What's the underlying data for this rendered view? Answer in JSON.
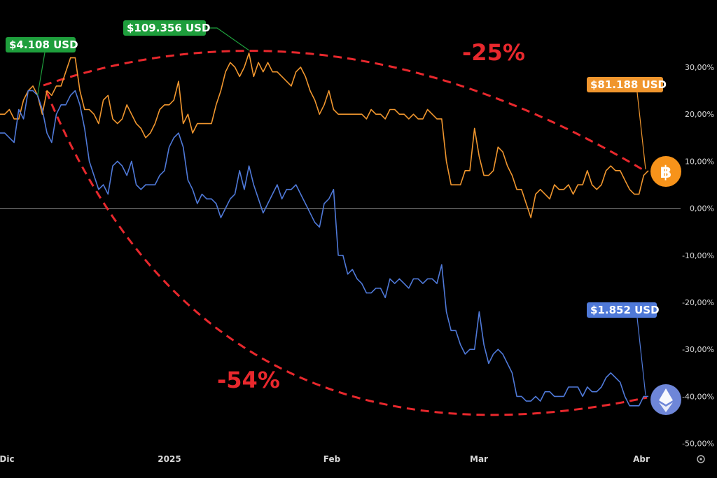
{
  "chart_data": {
    "type": "line",
    "title": "",
    "xlabel": "",
    "ylabel": "",
    "ylim": [
      -50,
      30
    ],
    "y_ticks": [
      "30,00%",
      "20,00%",
      "10,00%",
      "0,00%",
      "-10,00%",
      "-20,00%",
      "-30,00%",
      "-40,00%",
      "-50,00%"
    ],
    "x_ticks": [
      "Dic",
      "2025",
      "Feb",
      "Mar",
      "Abr"
    ],
    "grid": false,
    "legend": "none",
    "colors": {
      "btc": "#f0962e",
      "eth": "#4f79d8",
      "peak": "#1e9e3c",
      "trend": "#e8282d"
    },
    "series": [
      {
        "symbol": "bitcoin-icon",
        "values": [
          20,
          20,
          21,
          19,
          19,
          23,
          25,
          26,
          24,
          20,
          25,
          24,
          26,
          26,
          29,
          32,
          32,
          25,
          21,
          21,
          20,
          18,
          23,
          24,
          19,
          18,
          19,
          22,
          20,
          18,
          17,
          15,
          16,
          18,
          21,
          22,
          22,
          23,
          27,
          18,
          20,
          16,
          18,
          18,
          18,
          18,
          22,
          25,
          29,
          31,
          30,
          28,
          30,
          33,
          28,
          31,
          29,
          31,
          29,
          29,
          28,
          27,
          26,
          29,
          30,
          28,
          25,
          23,
          20,
          22,
          25,
          21,
          20,
          20,
          20,
          20,
          20,
          20,
          19,
          21,
          20,
          20,
          19,
          21,
          21,
          20,
          20,
          19,
          20,
          19,
          19,
          21,
          20,
          19,
          19,
          10,
          5,
          5,
          5,
          8,
          8,
          17,
          11,
          7,
          7,
          8,
          13,
          12,
          9,
          7,
          4,
          4,
          1,
          -2,
          3,
          4,
          3,
          2,
          5,
          4,
          4,
          5,
          3,
          5,
          5,
          8,
          5,
          4,
          5,
          8,
          9,
          8,
          8,
          6,
          4,
          3,
          3,
          7,
          8
        ],
        "end_label": "$81.188 USD"
      },
      {
        "symbol": "ethereum-icon",
        "values": [
          16,
          16,
          15,
          14,
          21,
          19,
          25,
          25,
          24,
          21,
          16,
          14,
          20,
          22,
          22,
          24,
          25,
          22,
          17,
          10,
          7,
          4,
          5,
          3,
          9,
          10,
          9,
          7,
          10,
          5,
          4,
          5,
          5,
          5,
          7,
          8,
          13,
          15,
          16,
          13,
          6,
          4,
          1,
          3,
          2,
          2,
          1,
          -2,
          0,
          2,
          3,
          8,
          4,
          9,
          5,
          2,
          -1,
          1,
          3,
          5,
          2,
          4,
          4,
          5,
          3,
          1,
          -1,
          -3,
          -4,
          1,
          2,
          4,
          -10,
          -10,
          -14,
          -13,
          -15,
          -16,
          -18,
          -18,
          -17,
          -17,
          -19,
          -15,
          -16,
          -15,
          -16,
          -17,
          -15,
          -15,
          -16,
          -15,
          -15,
          -16,
          -12,
          -22,
          -26,
          -26,
          -29,
          -31,
          -30,
          -30,
          -22,
          -29,
          -33,
          -31,
          -30,
          -31,
          -33,
          -35,
          -40,
          -40,
          -41,
          -41,
          -40,
          -41,
          -39,
          -39,
          -40,
          -40,
          -40,
          -38,
          -38,
          -38,
          -40,
          -38,
          -39,
          -39,
          -38,
          -36,
          -35,
          -36,
          -37,
          -40,
          -42,
          -42,
          -42,
          -40,
          -40
        ],
        "end_label": "$1.852 USD"
      }
    ],
    "annotations": [
      {
        "text": "$4.108 USD",
        "series": 1,
        "index": 8
      },
      {
        "text": "$109.356 USD",
        "series": 0,
        "index": 53
      }
    ],
    "trend_labels": [
      "-25%",
      "-54%"
    ]
  }
}
